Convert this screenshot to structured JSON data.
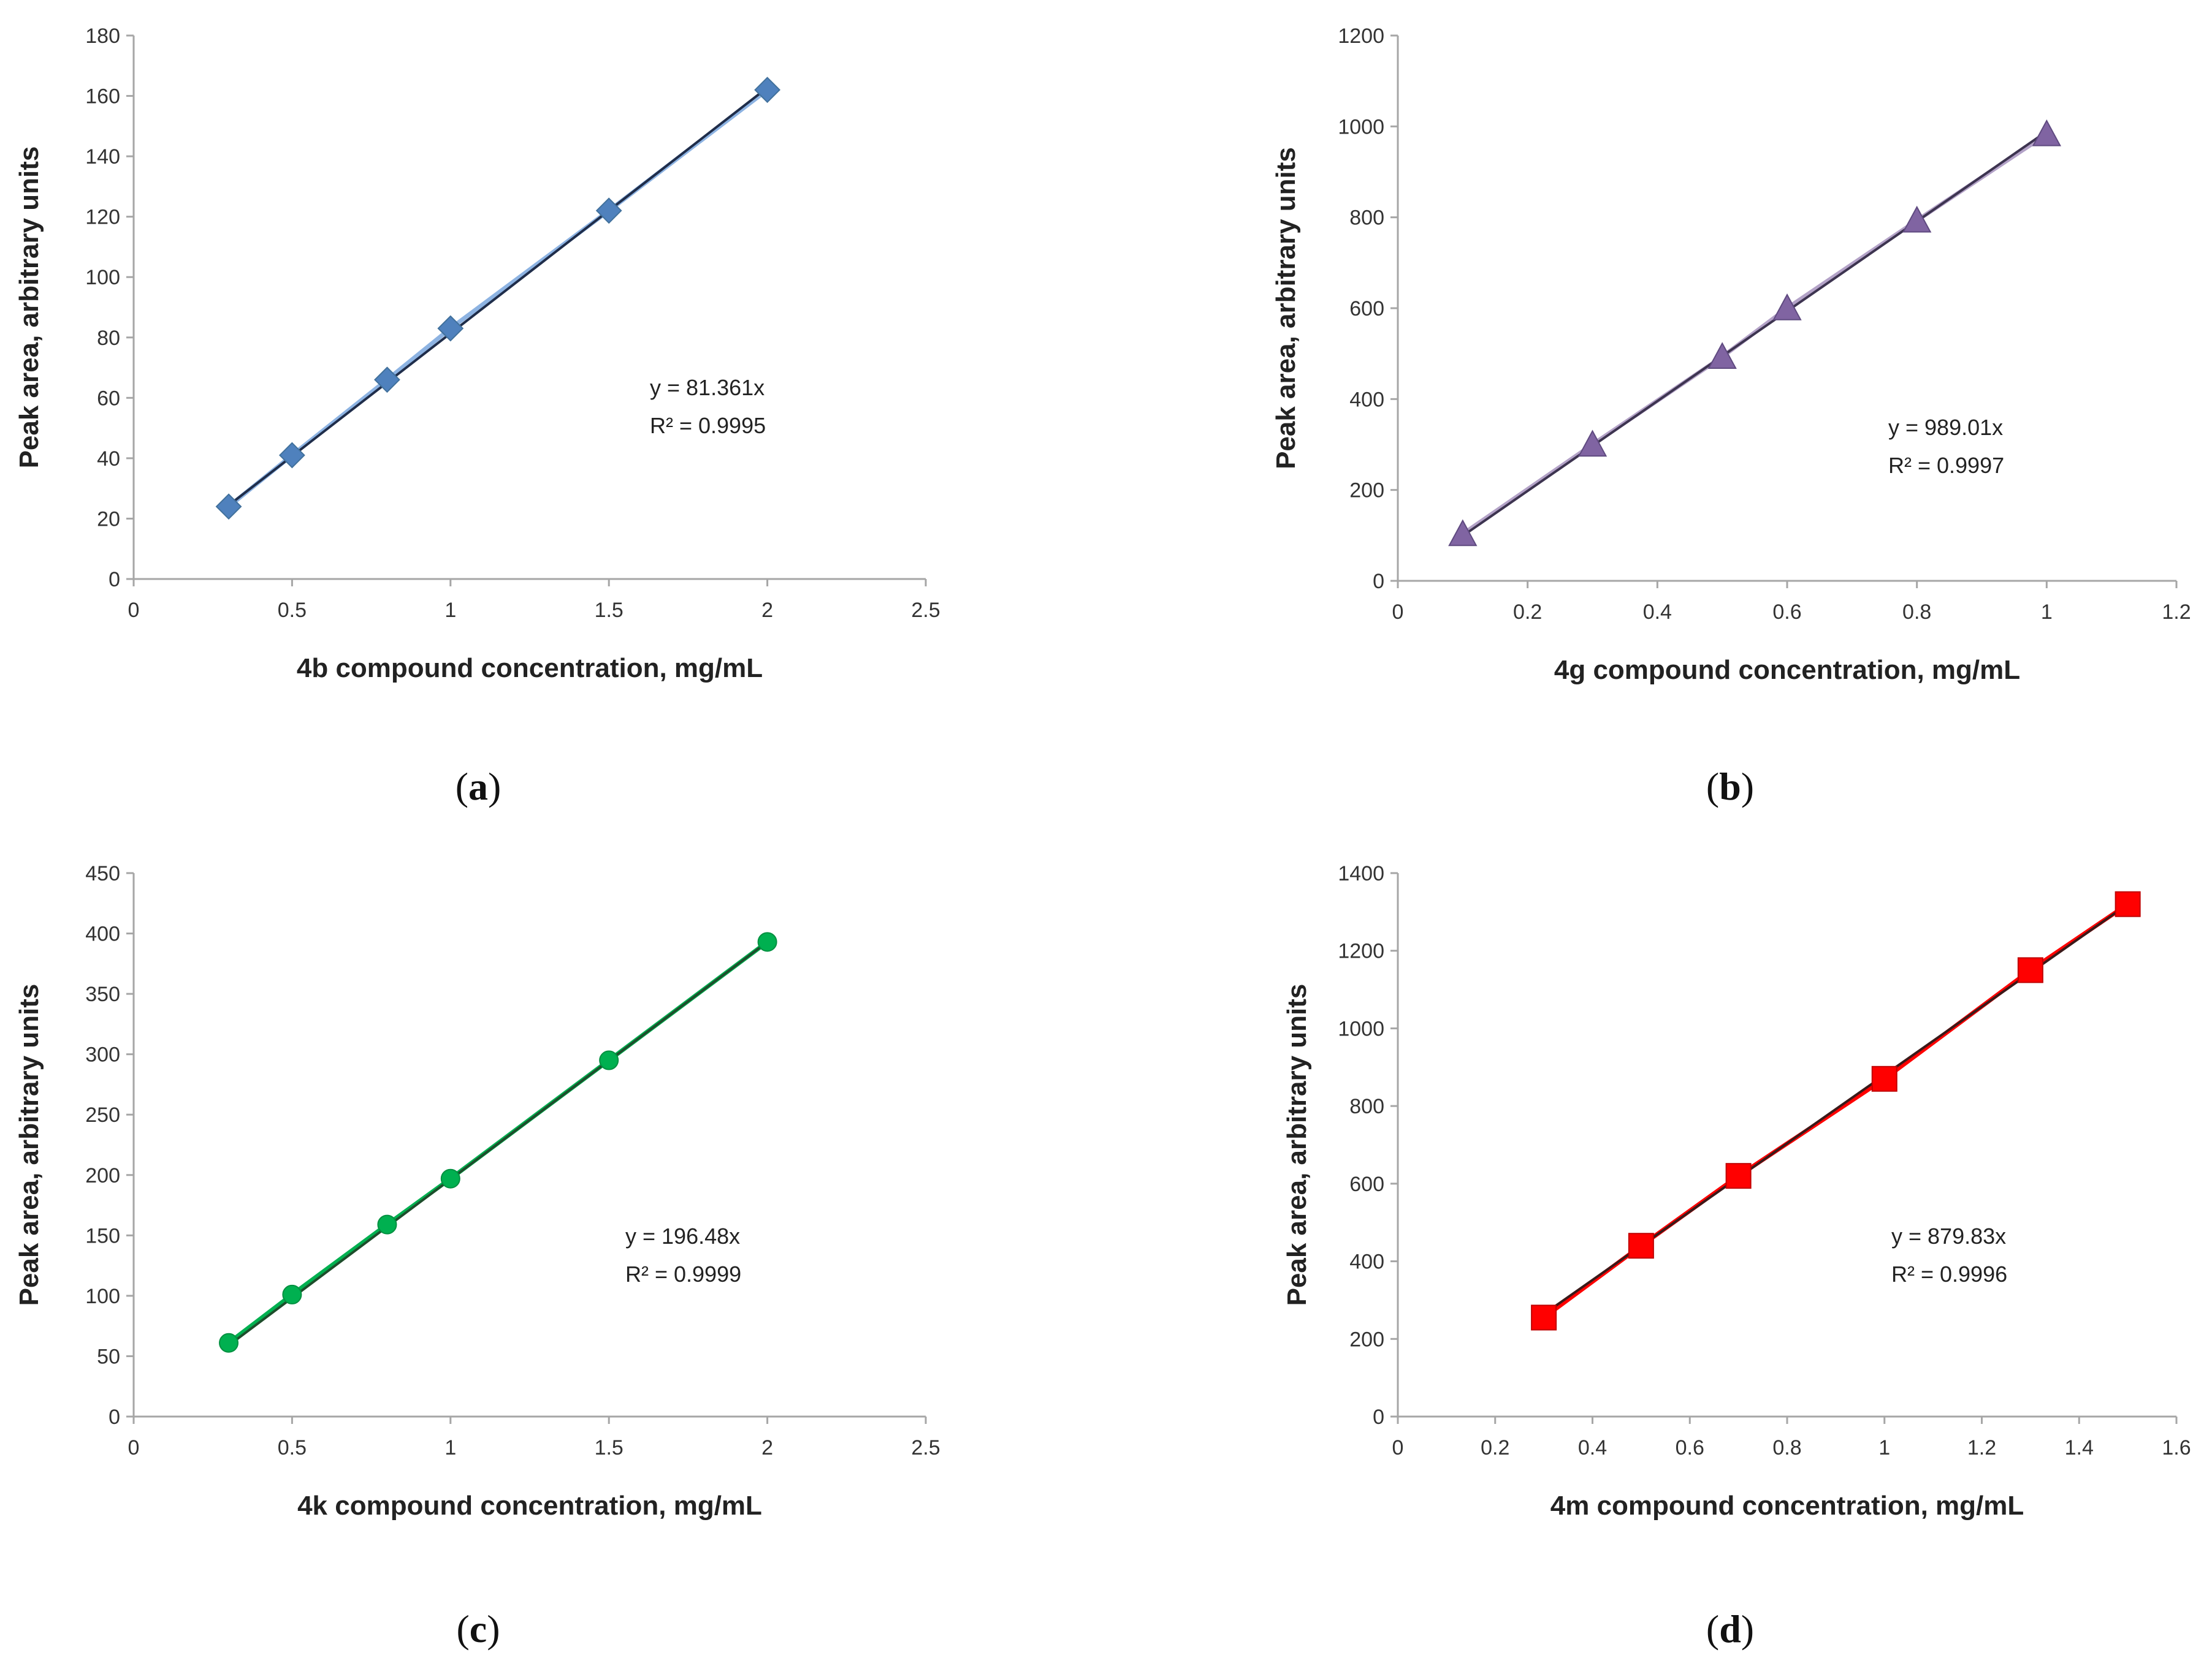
{
  "chart_data": [
    {
      "type": "scatter",
      "panel": "a",
      "x": [
        0.3,
        0.5,
        0.8,
        1.0,
        1.5,
        2.0
      ],
      "y": [
        24,
        41,
        66,
        83,
        122,
        162
      ],
      "xlim": [
        0,
        2.5
      ],
      "ylim": [
        0,
        180
      ],
      "xticks": [
        "0",
        "0.5",
        "1",
        "1.5",
        "2",
        "2.5"
      ],
      "yticks": [
        "0",
        "20",
        "40",
        "60",
        "80",
        "100",
        "120",
        "140",
        "160",
        "180"
      ],
      "xlabel": "4b compound concentration, mg/mL",
      "ylabel": "Peak area, arbitrary units",
      "equation": "y = 81.361x",
      "r2_label": "R² = 0.9995",
      "slope": 81.361,
      "marker": "diamond",
      "marker_color": "#4f81bd",
      "fit_color": "#1f2d4a",
      "series_line_color": "#8db3e2",
      "caption_letter": "a"
    },
    {
      "type": "scatter",
      "panel": "b",
      "x": [
        0.1,
        0.3,
        0.5,
        0.6,
        0.8,
        1.0
      ],
      "y": [
        103,
        300,
        493,
        600,
        793,
        983
      ],
      "xlim": [
        0,
        1.2
      ],
      "ylim": [
        0,
        1200
      ],
      "xticks": [
        "0",
        "0.2",
        "0.4",
        "0.6",
        "0.8",
        "1",
        "1.2"
      ],
      "yticks": [
        "0",
        "200",
        "400",
        "600",
        "800",
        "1000",
        "1200"
      ],
      "xlabel": "4g compound concentration, mg/mL",
      "ylabel": "Peak area, arbitrary units",
      "equation": "y = 989.01x",
      "r2_label": "R² = 0.9997",
      "slope": 989.01,
      "marker": "triangle",
      "marker_color": "#8064a2",
      "fit_color": "#3d3450",
      "series_line_color": "#b3a2c7",
      "caption_letter": "b"
    },
    {
      "type": "scatter",
      "panel": "c",
      "x": [
        0.3,
        0.5,
        0.8,
        1.0,
        1.5,
        2.0
      ],
      "y": [
        61,
        101,
        159,
        197,
        295,
        393
      ],
      "xlim": [
        0,
        2.5
      ],
      "ylim": [
        0,
        450
      ],
      "xticks": [
        "0",
        "0.5",
        "1",
        "1.5",
        "2",
        "2.5"
      ],
      "yticks": [
        "0",
        "50",
        "100",
        "150",
        "200",
        "250",
        "300",
        "350",
        "400",
        "450"
      ],
      "xlabel": "4k compound concentration, mg/mL",
      "ylabel": "Peak area, arbitrary units",
      "equation": "y = 196.48x",
      "r2_label": "R² = 0.9999",
      "slope": 196.48,
      "marker": "circle",
      "marker_color": "#00b050",
      "fit_color": "#1e4d2b",
      "series_line_color": "#00b050",
      "caption_letter": "c"
    },
    {
      "type": "scatter",
      "panel": "d",
      "x": [
        0.3,
        0.5,
        0.7,
        1.0,
        1.3,
        1.5
      ],
      "y": [
        255,
        440,
        620,
        870,
        1150,
        1320
      ],
      "xlim": [
        0,
        1.6
      ],
      "ylim": [
        0,
        1400
      ],
      "xticks": [
        "0",
        "0.2",
        "0.4",
        "0.6",
        "0.8",
        "1",
        "1.2",
        "1.4",
        "1.6"
      ],
      "yticks": [
        "0",
        "200",
        "400",
        "600",
        "800",
        "1000",
        "1200",
        "1400"
      ],
      "xlabel": "4m compound concentration, mg/mL",
      "ylabel": "Peak area, arbitrary units",
      "equation": "y = 879.83x",
      "r2_label": "R² = 0.9996",
      "slope": 879.83,
      "marker": "square",
      "marker_color": "#ff0000",
      "fit_color": "#3a1a1a",
      "series_line_color": "#ff0000",
      "caption_letter": "d"
    }
  ]
}
